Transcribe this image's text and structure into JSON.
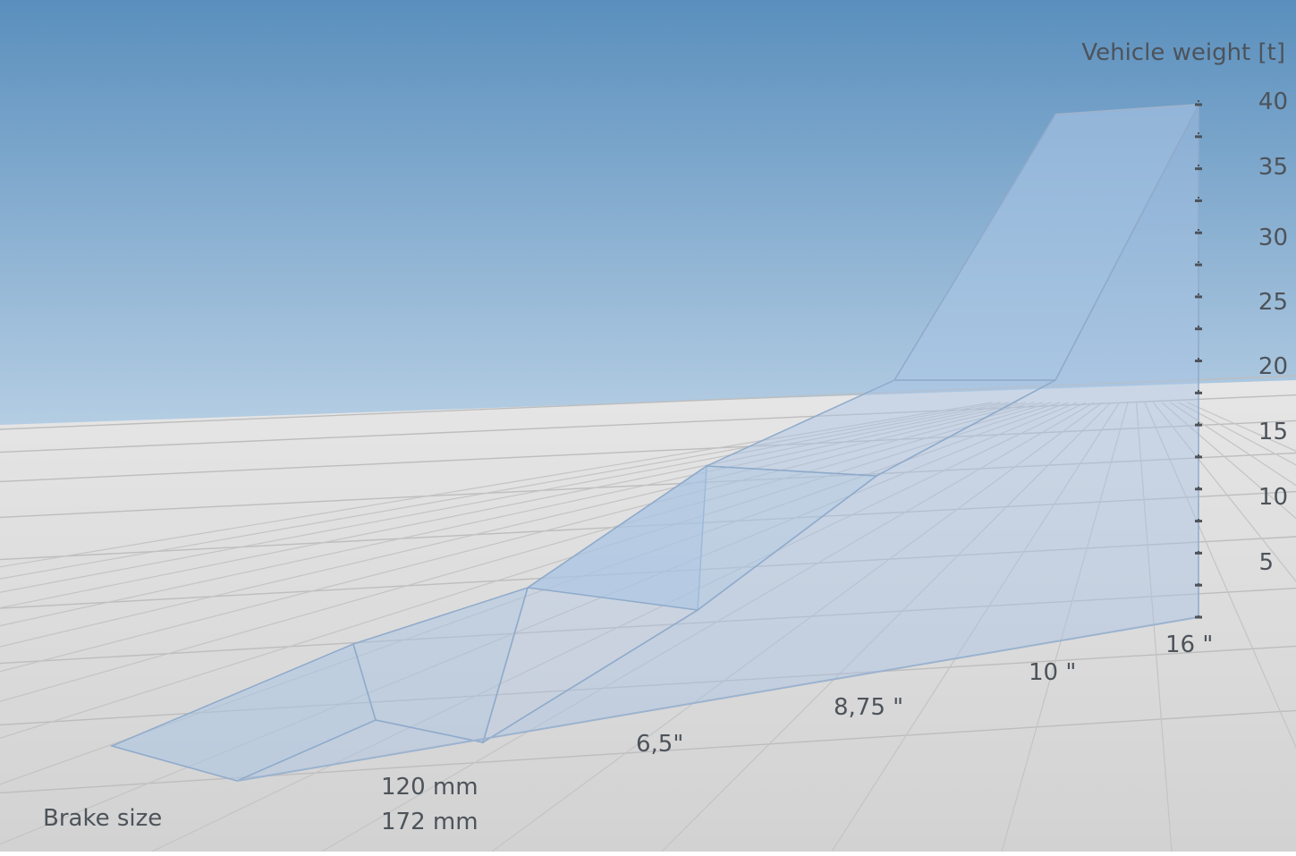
{
  "chart_data": {
    "type": "area",
    "title": "",
    "ylabel": "Vehicle weight [t]",
    "xlabel": "Brake size",
    "ylim": [
      0,
      40
    ],
    "yticks": [
      "40",
      "35",
      "30",
      "25",
      "20",
      "15",
      "10",
      "5"
    ],
    "x_labels": {
      "brake_first_line": "120 mm",
      "brake_second_line": "172 mm",
      "b_65": "6,5\"",
      "b_875": "8,75 \"",
      "b_10": "10 \"",
      "b_16": "16 \""
    },
    "categories": [
      "120 mm / 172 mm",
      "6,5\"",
      "8,75 \"",
      "10 \"",
      "16 \""
    ],
    "steps": [
      {
        "category": "120 mm / 172 mm",
        "weight_from": 0,
        "weight_to": 0
      },
      {
        "category": "6,5\"",
        "weight_from": 0,
        "weight_to": 3.5
      },
      {
        "category": "8,75 \"",
        "weight_from": 3.5,
        "weight_to": 4.5
      },
      {
        "category": "10 \"",
        "weight_from": 4.5,
        "weight_to": 18
      },
      {
        "category": "16 \"",
        "weight_from": 18,
        "weight_to": 40
      }
    ],
    "grid": true,
    "legend": "none"
  },
  "colors": {
    "sky_top": "#5a8fbd",
    "sky_bottom": "#b4cde3",
    "floor": "#dcdcdc",
    "surface_fill": "#a8c4e4",
    "surface_stroke": "#8faacb",
    "axis": "#4d535a"
  }
}
